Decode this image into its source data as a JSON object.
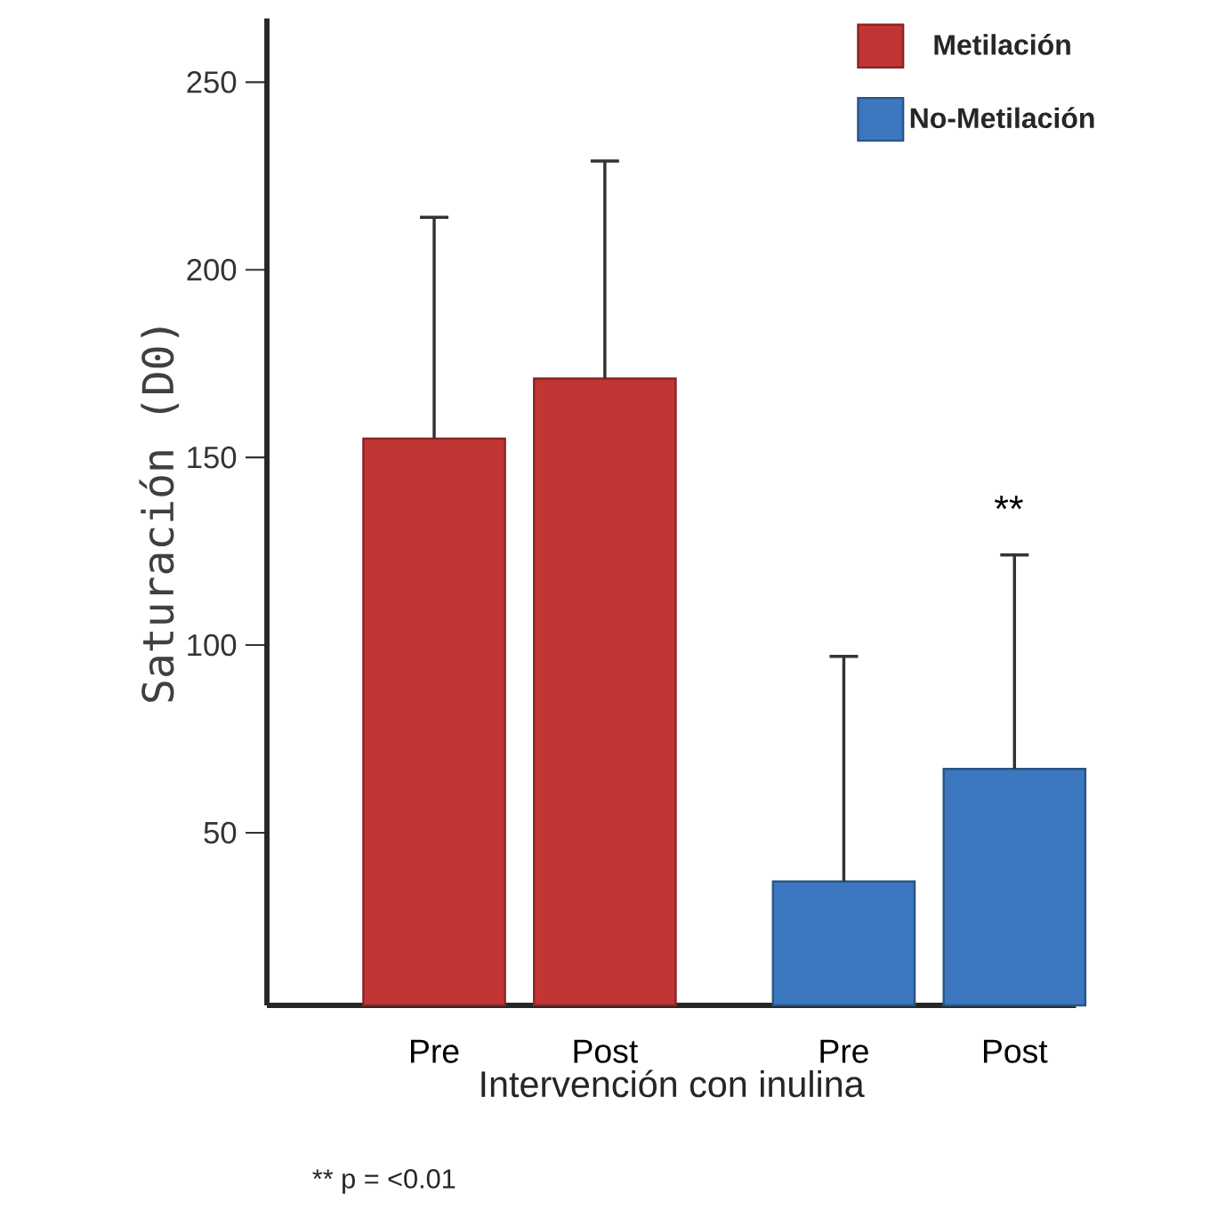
{
  "chart_data": {
    "type": "bar",
    "xlabel": "Intervención con inulina",
    "ylabel": "Saturación (D0)",
    "categories": [
      "Pre",
      "Post",
      "Pre",
      "Post"
    ],
    "series": [
      {
        "name": "Metilación",
        "color": "#c23535",
        "values": [
          155,
          171,
          null,
          null
        ],
        "errors": [
          [
            155,
            214
          ],
          [
            171,
            229
          ],
          null,
          null
        ]
      },
      {
        "name": "No-Metilación",
        "color": "#3b78bf",
        "values": [
          null,
          null,
          37,
          67
        ],
        "errors": [
          null,
          null,
          [
            37,
            97
          ],
          [
            67,
            124
          ]
        ]
      }
    ],
    "ylim": [
      4,
      267
    ],
    "yticks": [
      50,
      100,
      150,
      200,
      250
    ],
    "grid": false,
    "legend": "top right",
    "annotations": [
      "**",
      "** p = <0.01"
    ]
  }
}
